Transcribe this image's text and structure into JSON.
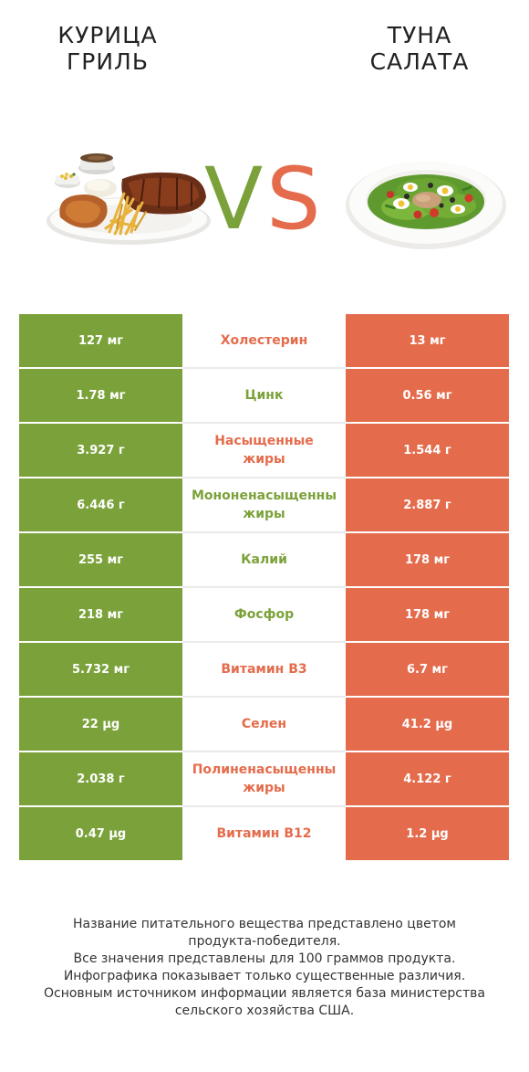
{
  "left_food": {
    "title_line1": "КУРИЦА",
    "title_line2": "ГРИЛЬ"
  },
  "right_food": {
    "title_line1": "ТУНА",
    "title_line2": "САЛАТА"
  },
  "vs": {
    "v": "V",
    "s": "S"
  },
  "colors": {
    "left_winner": "#7ba23a",
    "right_winner": "#e46c4c"
  },
  "rows": [
    {
      "left": "127 мг",
      "nutrient_lines": [
        "Холестерин"
      ],
      "right": "13 мг",
      "winner": "right"
    },
    {
      "left": "1.78 мг",
      "nutrient_lines": [
        "Цинк"
      ],
      "right": "0.56 мг",
      "winner": "left"
    },
    {
      "left": "3.927 г",
      "nutrient_lines": [
        "Насыщенные",
        "жиры"
      ],
      "right": "1.544 г",
      "winner": "right"
    },
    {
      "left": "6.446 г",
      "nutrient_lines": [
        "Мононенасыщенны",
        "жиры"
      ],
      "right": "2.887 г",
      "winner": "left"
    },
    {
      "left": "255 мг",
      "nutrient_lines": [
        "Калий"
      ],
      "right": "178 мг",
      "winner": "left"
    },
    {
      "left": "218 мг",
      "nutrient_lines": [
        "Фосфор"
      ],
      "right": "178 мг",
      "winner": "left"
    },
    {
      "left": "5.732 мг",
      "nutrient_lines": [
        "Витамин B3"
      ],
      "right": "6.7 мг",
      "winner": "right"
    },
    {
      "left": "22 µg",
      "nutrient_lines": [
        "Селен"
      ],
      "right": "41.2 µg",
      "winner": "right"
    },
    {
      "left": "2.038 г",
      "nutrient_lines": [
        "Полиненасыщенны",
        "жиры"
      ],
      "right": "4.122 г",
      "winner": "right"
    },
    {
      "left": "0.47 µg",
      "nutrient_lines": [
        "Витамин B12"
      ],
      "right": "1.2 µg",
      "winner": "right"
    }
  ],
  "footer": {
    "line1": "Название питательного вещества представлено цветом",
    "line2": "продукта-победителя.",
    "line3": "Все значения представлены для 100 граммов продукта.",
    "line4": "Инфографика показывает только существенные различия.",
    "line5": "Основным источником информации является база министерства",
    "line6": "сельского хозяйства США."
  }
}
